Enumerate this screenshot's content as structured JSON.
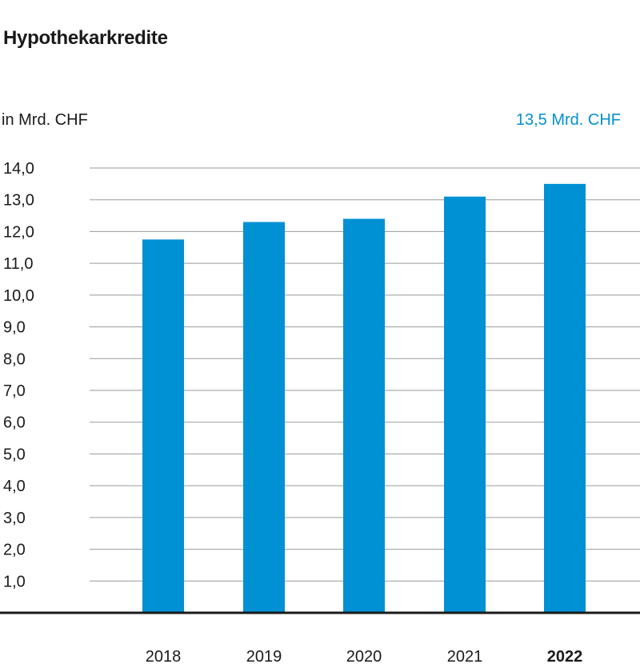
{
  "chart_data": {
    "type": "bar",
    "title": "Hypothekarkredite",
    "ylabel": "in Mrd. CHF",
    "annotation": "13,5 Mrd. CHF",
    "categories": [
      "2018",
      "2019",
      "2020",
      "2021",
      "2022"
    ],
    "values": [
      11.75,
      12.3,
      12.4,
      13.1,
      13.5
    ],
    "highlight_category": "2022",
    "ylim": [
      0,
      14
    ],
    "yticks": [
      "1,0",
      "2,0",
      "3,0",
      "4,0",
      "5,0",
      "6,0",
      "7,0",
      "8,0",
      "9,0",
      "10,0",
      "11,0",
      "12,0",
      "13,0",
      "14,0"
    ],
    "grid": true,
    "colors": {
      "bar": "#0090d4",
      "highlight_text": "#0090d4",
      "grid": "#9a9a9a",
      "axis": "#1a1a1a"
    }
  }
}
